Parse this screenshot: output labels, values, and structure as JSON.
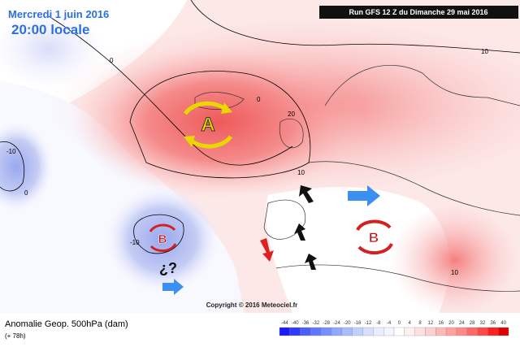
{
  "header": {
    "date": "Mercredi 1 juin 2016",
    "time": "20:00 locale",
    "run": "Run GFS 12 Z du Dimanche 29 mai 2016"
  },
  "map": {
    "contour_labels": [
      "0",
      "0",
      "0",
      "10",
      "10",
      "20",
      "-10",
      "-10",
      "10"
    ],
    "symbols": {
      "high": "A",
      "low_west": "B",
      "low_east": "B",
      "question": "¿?"
    },
    "copyright": "Copyright © 2016 Meteociel.fr"
  },
  "footer": {
    "title": "Anomalie Geop. 500hPa (dam)",
    "lead": "(+ 78h)"
  },
  "legend": {
    "values": [
      -44,
      -40,
      -36,
      -32,
      -28,
      -24,
      -20,
      -16,
      -12,
      -8,
      -4,
      0,
      4,
      8,
      12,
      16,
      20,
      24,
      28,
      32,
      36,
      40
    ],
    "colors": [
      "#1a1aff",
      "#2f3cff",
      "#4860ff",
      "#6078ff",
      "#7890ff",
      "#90a8ff",
      "#a8bcff",
      "#c0d0ff",
      "#d8e0ff",
      "#e8eeff",
      "#f4f6ff",
      "#ffffff",
      "#fff0f0",
      "#ffe0e0",
      "#ffd0d0",
      "#ffb8b8",
      "#ffa0a0",
      "#ff8888",
      "#ff6868",
      "#ff4848",
      "#ff2020",
      "#e00000"
    ]
  }
}
